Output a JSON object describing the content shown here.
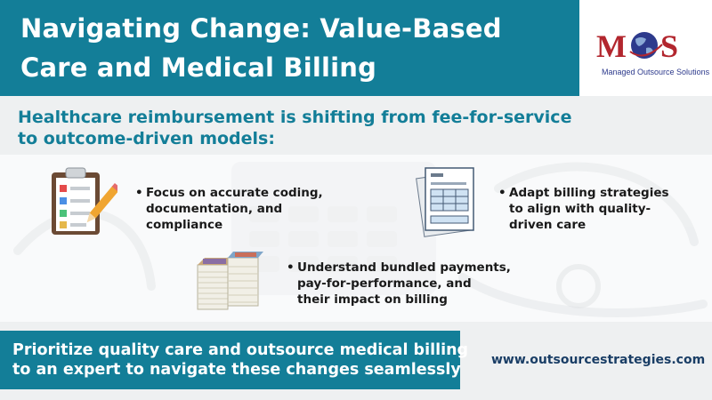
{
  "title": {
    "line1": "Navigating Change: Value-Based",
    "line2": "Care and Medical Billing"
  },
  "logo": {
    "letters": "MOS",
    "tagline": "Managed Outsource Solutions",
    "icon": "globe-icon"
  },
  "subtitle": {
    "line1": "Healthcare reimbursement is shifting from fee-for-service",
    "line2": "to outcome-driven models:"
  },
  "points": [
    {
      "icon": "checklist-clipboard-icon",
      "bullet": "•",
      "lines": [
        "Focus on accurate coding,",
        "documentation, and",
        "compliance"
      ]
    },
    {
      "icon": "billing-document-icon",
      "bullet": "•",
      "lines": [
        "Adapt billing strategies",
        "to align with quality-",
        "driven care"
      ]
    },
    {
      "icon": "money-stack-icon",
      "bullet": "•",
      "lines": [
        "Understand bundled payments,",
        "pay-for-performance, and",
        "their impact on billing"
      ]
    }
  ],
  "cta": {
    "line1": "Prioritize quality care and outsource medical billing",
    "line2": "to an expert to navigate these changes seamlessly"
  },
  "website": "www.outsourcestrategies.com",
  "colors": {
    "teal": "#137e98",
    "light_band": "#eef0f1",
    "text_dark": "#1a1a1a",
    "website_text": "#1a3e66",
    "logo_red": "#b2262e",
    "logo_navy": "#2d3a8c"
  }
}
